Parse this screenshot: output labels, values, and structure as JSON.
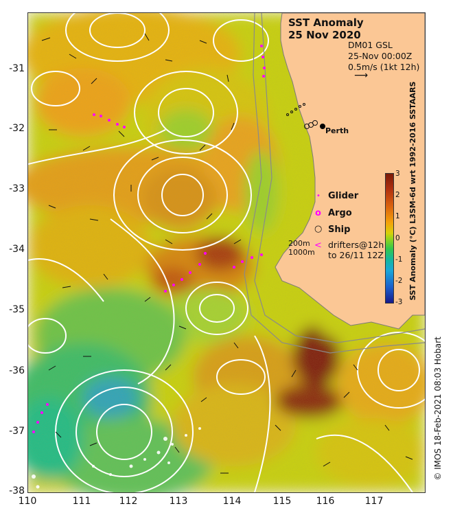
{
  "map": {
    "title": "SST Anomaly",
    "date": "25 Nov 2020",
    "product": "DM01 GSL",
    "timestamp": "25-Nov 00:00Z",
    "vector_scale": "0.5m/s (1kt 12h)",
    "city": "Perth",
    "colors": {
      "land": "#fbc795",
      "coast": "#9a9a9a",
      "contour": "#ffffff",
      "glider": "#ff00ff",
      "argo": "#ff00ff"
    }
  },
  "axes": {
    "x_ticks": [
      "110",
      "111",
      "112",
      "113",
      "114",
      "115",
      "116",
      "117"
    ],
    "y_ticks": [
      "-31",
      "-32",
      "-33",
      "-34",
      "-35",
      "-36",
      "-37",
      "-38"
    ]
  },
  "legend": {
    "glider": "Glider",
    "argo": "Argo",
    "ship": "Ship",
    "depth_200": "200m",
    "depth_1000": "1000m",
    "drifters_line1": "drifters@12h",
    "drifters_line2": "to 26/11 12Z"
  },
  "colorbar": {
    "title": "SST Anomaly (°C) L3SM-6d wrt 1992-2016 SSTAARS",
    "ticks": [
      "3",
      "2",
      "1",
      "0",
      "-1",
      "-2",
      "-3"
    ],
    "range": [
      -3,
      3
    ]
  },
  "credit": "© IMOS 18-Feb-2021 08:03 Hobart"
}
